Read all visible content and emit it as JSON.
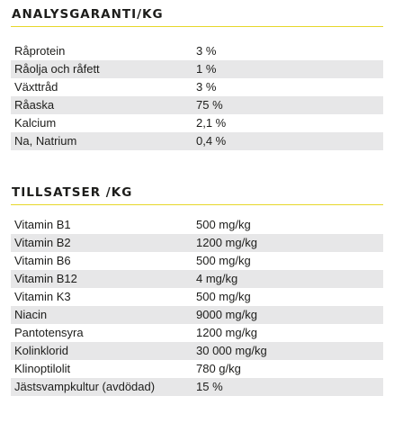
{
  "analys": {
    "title": "ANALYSGARANTI/KG",
    "rows": [
      {
        "name": "Råprotein",
        "value": "3 %"
      },
      {
        "name": "Råolja och råfett",
        "value": "1 %"
      },
      {
        "name": "Växttråd",
        "value": "3 %"
      },
      {
        "name": "Råaska",
        "value": "75 %"
      },
      {
        "name": "Kalcium",
        "value": "2,1 %"
      },
      {
        "name": "Na, Natrium",
        "value": "0,4 %"
      }
    ]
  },
  "tillsatser": {
    "title": "TILLSATSER /KG",
    "rows": [
      {
        "name": "Vitamin B1",
        "value": "500 mg/kg"
      },
      {
        "name": "Vitamin B2",
        "value": "1200 mg/kg"
      },
      {
        "name": "Vitamin B6",
        "value": "500 mg/kg"
      },
      {
        "name": "Vitamin B12",
        "value": "4 mg/kg"
      },
      {
        "name": "Vitamin K3",
        "value": "500 mg/kg"
      },
      {
        "name": "Niacin",
        "value": "9000 mg/kg"
      },
      {
        "name": "Pantotensyra",
        "value": "1200 mg/kg"
      },
      {
        "name": "Kolinklorid",
        "value": "30 000 mg/kg"
      },
      {
        "name": "Klinoptilolit",
        "value": "780 g/kg"
      },
      {
        "name": "Jästsvampkultur (avdödad)",
        "value": "15 %"
      }
    ]
  }
}
